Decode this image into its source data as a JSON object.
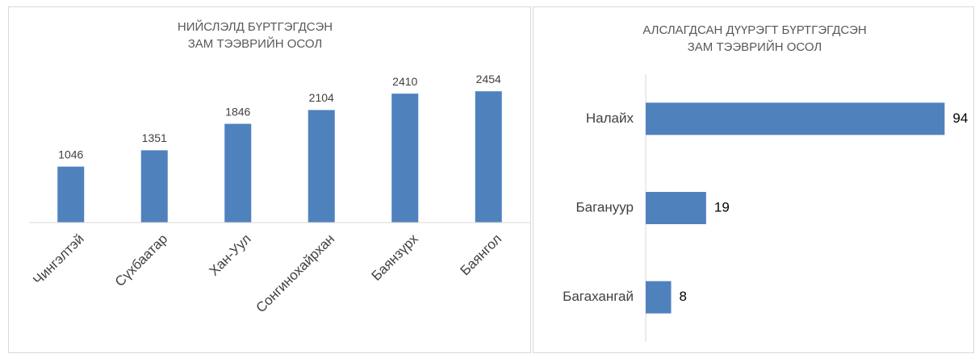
{
  "chart_data": [
    {
      "type": "bar",
      "title": [
        "НИЙСЛЭЛД БҮРТГЭГДСЭН",
        "ЗАМ ТЭЭВРИЙН ОСОЛ"
      ],
      "categories": [
        "Чингэлтэй",
        "Сүхбаатар",
        "Хан-Уул",
        "Сонгинохайрхан",
        "Баянзүрх",
        "Баянгол"
      ],
      "values": [
        1046,
        1351,
        1846,
        2104,
        2410,
        2454
      ],
      "color": "#4f81bd",
      "ylim": [
        0,
        3000
      ]
    },
    {
      "type": "barh",
      "title": [
        "АЛСЛАГДСАН ДҮҮРЭГТ БҮРТГЭГДСЭН",
        "ЗАМ ТЭЭВРИЙН ОСОЛ"
      ],
      "categories": [
        "Налайх",
        "Багануур",
        "Багахангай"
      ],
      "values": [
        94,
        19,
        8
      ],
      "color": "#4f81bd",
      "xlim": [
        0,
        100
      ]
    }
  ]
}
